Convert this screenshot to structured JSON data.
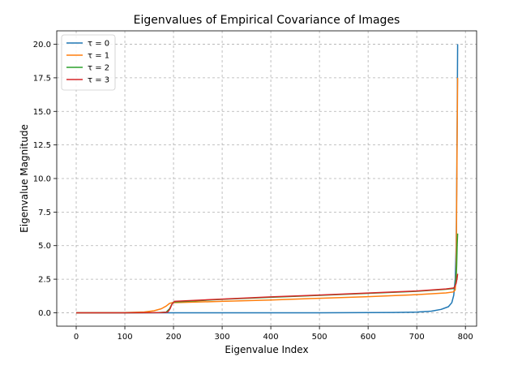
{
  "chart_data": {
    "type": "line",
    "title": "Eigenvalues of Empirical Covariance of Images",
    "xlabel": "Eigenvalue Index",
    "ylabel": "Eigenvalue Magnitude",
    "xlim": [
      -40,
      823
    ],
    "ylim": [
      -1.0,
      21.0
    ],
    "xticks": [
      0,
      100,
      200,
      300,
      400,
      500,
      600,
      700,
      800
    ],
    "xtick_labels": [
      "0",
      "100",
      "200",
      "300",
      "400",
      "500",
      "600",
      "700",
      "800"
    ],
    "yticks": [
      0.0,
      2.5,
      5.0,
      7.5,
      10.0,
      12.5,
      15.0,
      17.5,
      20.0
    ],
    "ytick_labels": [
      "0.0",
      "2.5",
      "5.0",
      "7.5",
      "10.0",
      "12.5",
      "15.0",
      "17.5",
      "20.0"
    ],
    "grid": true,
    "legend_position": "top-left",
    "series": [
      {
        "name": "τ = 0",
        "color": "#1f77b4",
        "points": [
          [
            0,
            0.0
          ],
          [
            100,
            0.0
          ],
          [
            200,
            0.0
          ],
          [
            300,
            0.0
          ],
          [
            400,
            0.0
          ],
          [
            500,
            0.0
          ],
          [
            600,
            0.01
          ],
          [
            650,
            0.02
          ],
          [
            700,
            0.05
          ],
          [
            730,
            0.12
          ],
          [
            750,
            0.25
          ],
          [
            765,
            0.45
          ],
          [
            772,
            0.75
          ],
          [
            776,
            1.3
          ],
          [
            779,
            2.5
          ],
          [
            781,
            5.0
          ],
          [
            782,
            9.0
          ],
          [
            783,
            14.0
          ],
          [
            784,
            20.0
          ]
        ]
      },
      {
        "name": "τ = 1",
        "color": "#ff7f0e",
        "points": [
          [
            0,
            0.0
          ],
          [
            100,
            0.01
          ],
          [
            140,
            0.06
          ],
          [
            160,
            0.15
          ],
          [
            175,
            0.3
          ],
          [
            185,
            0.5
          ],
          [
            192,
            0.7
          ],
          [
            197,
            0.75
          ],
          [
            200,
            0.75
          ],
          [
            300,
            0.85
          ],
          [
            400,
            0.95
          ],
          [
            500,
            1.08
          ],
          [
            600,
            1.2
          ],
          [
            700,
            1.35
          ],
          [
            760,
            1.48
          ],
          [
            775,
            1.55
          ],
          [
            779,
            1.7
          ],
          [
            781,
            3.0
          ],
          [
            782,
            8.0
          ],
          [
            783,
            13.0
          ],
          [
            784,
            17.5
          ]
        ]
      },
      {
        "name": "τ = 2",
        "color": "#2ca02c",
        "points": [
          [
            0,
            0.0
          ],
          [
            100,
            0.0
          ],
          [
            170,
            0.01
          ],
          [
            185,
            0.05
          ],
          [
            192,
            0.3
          ],
          [
            196,
            0.6
          ],
          [
            200,
            0.8
          ],
          [
            300,
            1.0
          ],
          [
            400,
            1.15
          ],
          [
            500,
            1.3
          ],
          [
            600,
            1.45
          ],
          [
            700,
            1.6
          ],
          [
            760,
            1.75
          ],
          [
            775,
            1.8
          ],
          [
            779,
            2.0
          ],
          [
            781,
            2.6
          ],
          [
            782,
            3.5
          ],
          [
            783,
            5.0
          ],
          [
            784,
            5.9
          ]
        ]
      },
      {
        "name": "τ = 3",
        "color": "#d62728",
        "points": [
          [
            0,
            0.0
          ],
          [
            100,
            0.0
          ],
          [
            175,
            0.01
          ],
          [
            188,
            0.05
          ],
          [
            193,
            0.3
          ],
          [
            197,
            0.65
          ],
          [
            202,
            0.85
          ],
          [
            300,
            1.02
          ],
          [
            400,
            1.18
          ],
          [
            500,
            1.32
          ],
          [
            600,
            1.47
          ],
          [
            700,
            1.62
          ],
          [
            760,
            1.77
          ],
          [
            777,
            1.85
          ],
          [
            781,
            2.2
          ],
          [
            783,
            2.6
          ],
          [
            784,
            2.9
          ]
        ]
      }
    ]
  }
}
